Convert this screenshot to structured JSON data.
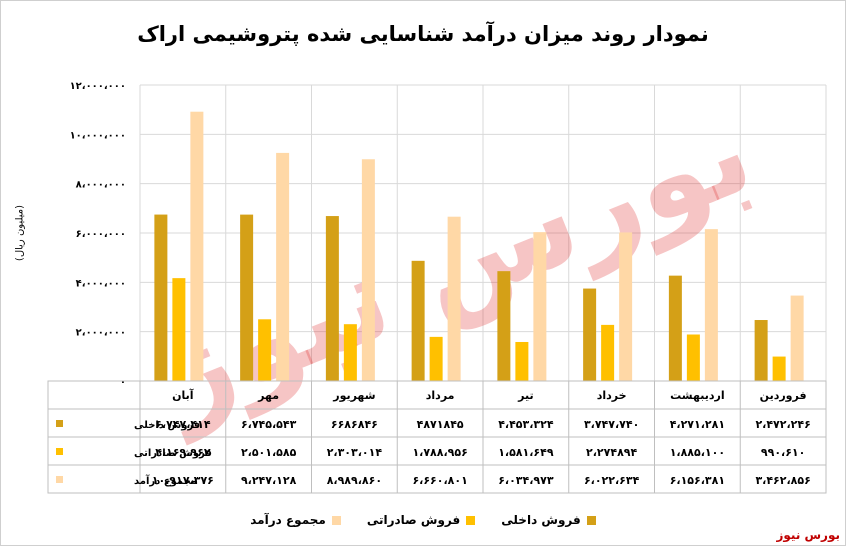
{
  "title": "نمودار روند میزان درآمد شناسایی شده پتروشیمی اراک",
  "watermark": "بورس نیوز",
  "brand": "بورس نیوز",
  "chart_data": {
    "type": "bar",
    "title": "نمودار روند میزان درآمد شناسایی شده پتروشیمی اراک",
    "ylabel": "(میلیون ریال)",
    "xlabel": "",
    "ylim": [
      0,
      12000000
    ],
    "y_ticks": [
      0,
      2000000,
      4000000,
      6000000,
      8000000,
      10000000,
      12000000
    ],
    "y_tick_labels": [
      "۰",
      "۲،۰۰۰،۰۰۰",
      "۴،۰۰۰،۰۰۰",
      "۶،۰۰۰،۰۰۰",
      "۸،۰۰۰،۰۰۰",
      "۱۰،۰۰۰،۰۰۰",
      "۱۲،۰۰۰،۰۰۰"
    ],
    "grid": true,
    "legend_position": "bottom",
    "categories": [
      "فروردین",
      "اردیبهشت",
      "خرداد",
      "تیر",
      "مرداد",
      "شهریور",
      "مهر",
      "آبان"
    ],
    "series": [
      {
        "name": "فروش داخلی",
        "color": "#d4a017",
        "values": [
          2472246,
          4271281,
          3747740,
          4453324,
          4871845,
          6686846,
          6745543,
          6747414
        ],
        "labels": [
          "۲،۴۷۲،۲۴۶",
          "۴،۲۷۱،۲۸۱",
          "۳،۷۴۷،۷۴۰",
          "۴،۴۵۳،۳۲۴",
          "۴۸۷۱۸۴۵",
          "۶۶۸۶۸۴۶",
          "۶،۷۴۵،۵۴۳",
          "۶،۷۴۷،۴۱۴"
        ]
      },
      {
        "name": "فروش صادراتی",
        "color": "#ffc000",
        "values": [
          990610,
          1885100,
          2274894,
          1581649,
          1788956,
          2303014,
          2501585,
          4169962
        ],
        "labels": [
          "۹۹۰،۶۱۰",
          "۱،۸۸۵،۱۰۰",
          "۲،۲۷۴۸۹۴",
          "۱،۵۸۱،۶۴۹",
          "۱،۷۸۸،۹۵۶",
          "۲،۳۰۳،۰۱۴",
          "۲،۵۰۱،۵۸۵",
          "۴،۱۶۹،۹۶۲"
        ]
      },
      {
        "name": "مجموع درآمد",
        "color": "#ffd8a6",
        "values": [
          3462856,
          6156381,
          6022634,
          6034973,
          6660801,
          8989860,
          9247128,
          10917376
        ],
        "labels": [
          "۳،۴۶۲،۸۵۶",
          "۶،۱۵۶،۳۸۱",
          "۶،۰۲۲،۶۳۴",
          "۶،۰۳۴،۹۷۳",
          "۶،۶۶۰،۸۰۱",
          "۸،۹۸۹،۸۶۰",
          "۹،۲۴۷،۱۲۸",
          "۱۰،۹۱۷،۳۷۶"
        ]
      }
    ]
  }
}
